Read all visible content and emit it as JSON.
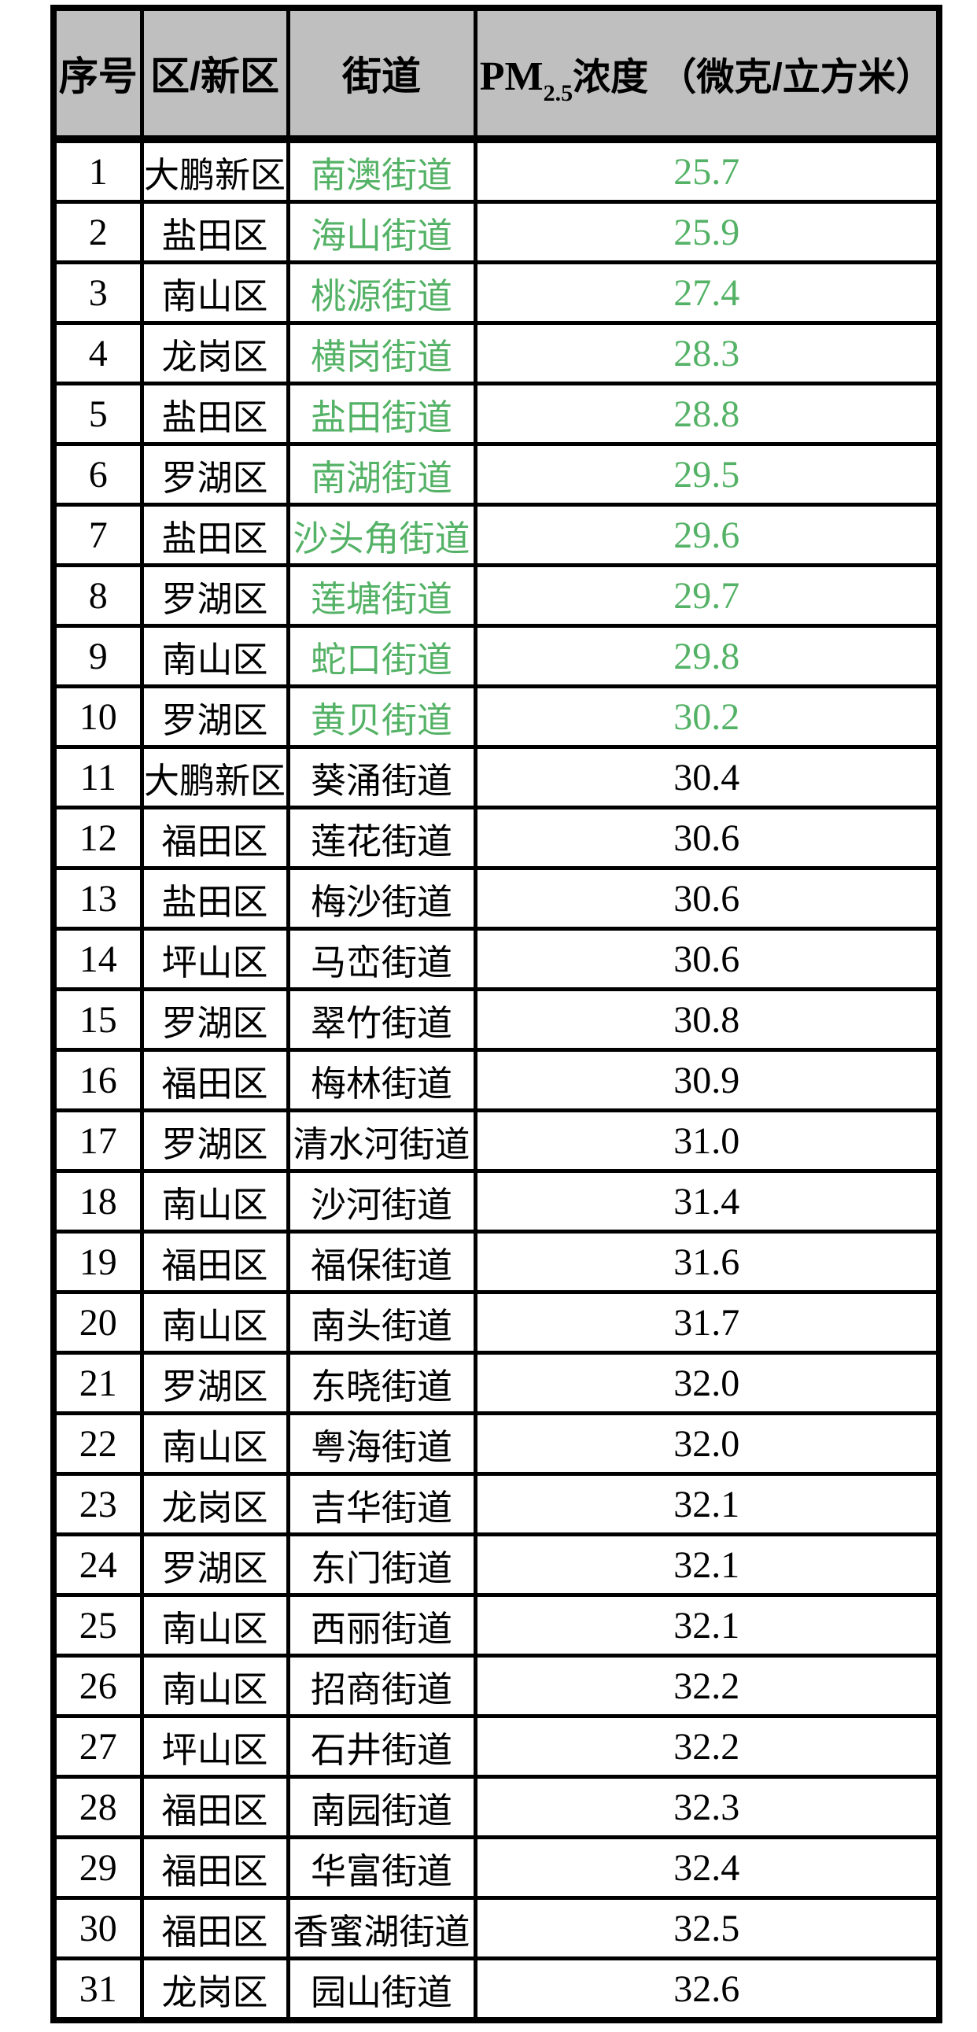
{
  "colors": {
    "green_highlight": "#54b266",
    "header_bg": "#bfbfbf",
    "border": "#000000",
    "text": "#000000"
  },
  "header": {
    "rank": "序号",
    "district": "区/新区",
    "street": "街道",
    "pm": {
      "prefix": "PM",
      "sub": "2.5",
      "suffix": "浓度 （微克/立方米）"
    }
  },
  "table": {
    "rows": [
      {
        "no": "1",
        "district": "大鹏新区",
        "street": "南澳街道",
        "value": "25.7",
        "green": true
      },
      {
        "no": "2",
        "district": "盐田区",
        "street": "海山街道",
        "value": "25.9",
        "green": true
      },
      {
        "no": "3",
        "district": "南山区",
        "street": "桃源街道",
        "value": "27.4",
        "green": true
      },
      {
        "no": "4",
        "district": "龙岗区",
        "street": "横岗街道",
        "value": "28.3",
        "green": true
      },
      {
        "no": "5",
        "district": "盐田区",
        "street": "盐田街道",
        "value": "28.8",
        "green": true
      },
      {
        "no": "6",
        "district": "罗湖区",
        "street": "南湖街道",
        "value": "29.5",
        "green": true
      },
      {
        "no": "7",
        "district": "盐田区",
        "street": "沙头角街道",
        "value": "29.6",
        "green": true
      },
      {
        "no": "8",
        "district": "罗湖区",
        "street": "莲塘街道",
        "value": "29.7",
        "green": true
      },
      {
        "no": "9",
        "district": "南山区",
        "street": "蛇口街道",
        "value": "29.8",
        "green": true
      },
      {
        "no": "10",
        "district": "罗湖区",
        "street": "黄贝街道",
        "value": "30.2",
        "green": true
      },
      {
        "no": "11",
        "district": "大鹏新区",
        "street": "葵涌街道",
        "value": "30.4",
        "green": false
      },
      {
        "no": "12",
        "district": "福田区",
        "street": "莲花街道",
        "value": "30.6",
        "green": false
      },
      {
        "no": "13",
        "district": "盐田区",
        "street": "梅沙街道",
        "value": "30.6",
        "green": false
      },
      {
        "no": "14",
        "district": "坪山区",
        "street": "马峦街道",
        "value": "30.6",
        "green": false
      },
      {
        "no": "15",
        "district": "罗湖区",
        "street": "翠竹街道",
        "value": "30.8",
        "green": false
      },
      {
        "no": "16",
        "district": "福田区",
        "street": "梅林街道",
        "value": "30.9",
        "green": false
      },
      {
        "no": "17",
        "district": "罗湖区",
        "street": "清水河街道",
        "value": "31.0",
        "green": false
      },
      {
        "no": "18",
        "district": "南山区",
        "street": "沙河街道",
        "value": "31.4",
        "green": false
      },
      {
        "no": "19",
        "district": "福田区",
        "street": "福保街道",
        "value": "31.6",
        "green": false
      },
      {
        "no": "20",
        "district": "南山区",
        "street": "南头街道",
        "value": "31.7",
        "green": false
      },
      {
        "no": "21",
        "district": "罗湖区",
        "street": "东晓街道",
        "value": "32.0",
        "green": false
      },
      {
        "no": "22",
        "district": "南山区",
        "street": "粤海街道",
        "value": "32.0",
        "green": false
      },
      {
        "no": "23",
        "district": "龙岗区",
        "street": "吉华街道",
        "value": "32.1",
        "green": false
      },
      {
        "no": "24",
        "district": "罗湖区",
        "street": "东门街道",
        "value": "32.1",
        "green": false
      },
      {
        "no": "25",
        "district": "南山区",
        "street": "西丽街道",
        "value": "32.1",
        "green": false
      },
      {
        "no": "26",
        "district": "南山区",
        "street": "招商街道",
        "value": "32.2",
        "green": false
      },
      {
        "no": "27",
        "district": "坪山区",
        "street": "石井街道",
        "value": "32.2",
        "green": false
      },
      {
        "no": "28",
        "district": "福田区",
        "street": "南园街道",
        "value": "32.3",
        "green": false
      },
      {
        "no": "29",
        "district": "福田区",
        "street": "华富街道",
        "value": "32.4",
        "green": false
      },
      {
        "no": "30",
        "district": "福田区",
        "street": "香蜜湖街道",
        "value": "32.5",
        "green": false
      },
      {
        "no": "31",
        "district": "龙岗区",
        "street": "园山街道",
        "value": "32.6",
        "green": false
      }
    ]
  },
  "chart_data": {
    "type": "table",
    "title": "",
    "columns": [
      "序号",
      "区/新区",
      "街道",
      "PM2.5浓度（微克/立方米）"
    ],
    "rows": [
      [
        1,
        "大鹏新区",
        "南澳街道",
        25.7
      ],
      [
        2,
        "盐田区",
        "海山街道",
        25.9
      ],
      [
        3,
        "南山区",
        "桃源街道",
        27.4
      ],
      [
        4,
        "龙岗区",
        "横岗街道",
        28.3
      ],
      [
        5,
        "盐田区",
        "盐田街道",
        28.8
      ],
      [
        6,
        "罗湖区",
        "南湖街道",
        29.5
      ],
      [
        7,
        "盐田区",
        "沙头角街道",
        29.6
      ],
      [
        8,
        "罗湖区",
        "莲塘街道",
        29.7
      ],
      [
        9,
        "南山区",
        "蛇口街道",
        29.8
      ],
      [
        10,
        "罗湖区",
        "黄贝街道",
        30.2
      ],
      [
        11,
        "大鹏新区",
        "葵涌街道",
        30.4
      ],
      [
        12,
        "福田区",
        "莲花街道",
        30.6
      ],
      [
        13,
        "盐田区",
        "梅沙街道",
        30.6
      ],
      [
        14,
        "坪山区",
        "马峦街道",
        30.6
      ],
      [
        15,
        "罗湖区",
        "翠竹街道",
        30.8
      ],
      [
        16,
        "福田区",
        "梅林街道",
        30.9
      ],
      [
        17,
        "罗湖区",
        "清水河街道",
        31.0
      ],
      [
        18,
        "南山区",
        "沙河街道",
        31.4
      ],
      [
        19,
        "福田区",
        "福保街道",
        31.6
      ],
      [
        20,
        "南山区",
        "南头街道",
        31.7
      ],
      [
        21,
        "罗湖区",
        "东晓街道",
        32.0
      ],
      [
        22,
        "南山区",
        "粤海街道",
        32.0
      ],
      [
        23,
        "龙岗区",
        "吉华街道",
        32.1
      ],
      [
        24,
        "罗湖区",
        "东门街道",
        32.1
      ],
      [
        25,
        "南山区",
        "西丽街道",
        32.1
      ],
      [
        26,
        "南山区",
        "招商街道",
        32.2
      ],
      [
        27,
        "坪山区",
        "石井街道",
        32.2
      ],
      [
        28,
        "福田区",
        "南园街道",
        32.3
      ],
      [
        29,
        "福田区",
        "华富街道",
        32.4
      ],
      [
        30,
        "福田区",
        "香蜜湖街道",
        32.5
      ],
      [
        31,
        "龙岗区",
        "园山街道",
        32.6
      ]
    ],
    "notes": "Rows ranked 1-10 are rendered in green (street and value cells); header row has gray background"
  }
}
